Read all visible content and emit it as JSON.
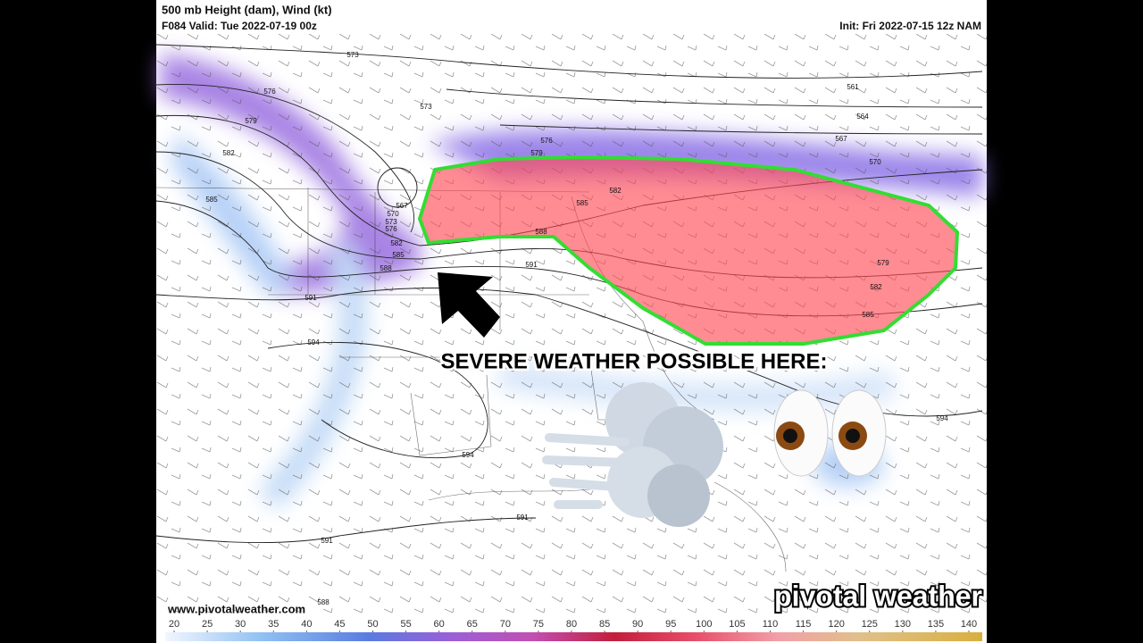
{
  "header": {
    "title": "500 mb Height (dam), Wind (kt)",
    "valid": "F084 Valid: Tue 2022-07-19 00z",
    "init": "Init: Fri 2022-07-15 12z NAM"
  },
  "map": {
    "contour_labels": [
      573,
      576,
      573,
      579,
      582,
      585,
      567,
      570,
      573,
      576,
      582,
      585,
      588,
      591,
      594,
      576,
      579,
      582,
      585,
      588,
      591,
      561,
      564,
      567,
      570,
      579,
      582,
      585,
      594,
      594,
      591,
      591,
      588
    ],
    "annotation": "SEVERE WEATHER POSSIBLE HERE:",
    "website": "www.pivotalweather.com",
    "watermark": "pivotal weather"
  },
  "colorbar": {
    "ticks": [
      20,
      25,
      30,
      35,
      40,
      45,
      50,
      55,
      60,
      65,
      70,
      75,
      80,
      85,
      90,
      95,
      100,
      105,
      110,
      115,
      120,
      125,
      130,
      135,
      140
    ]
  }
}
